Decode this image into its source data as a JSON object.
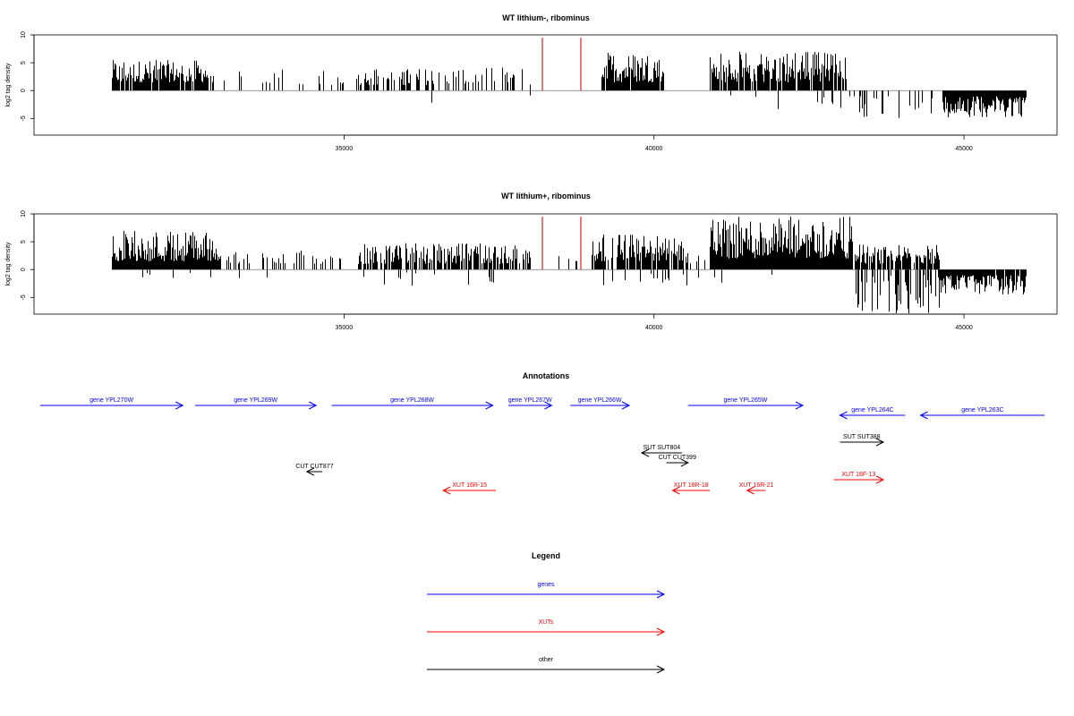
{
  "chart_data": [
    {
      "type": "bar",
      "title": "WT lithium-, ribominus",
      "ylabel": "log2 tag density",
      "xlim": [
        30000,
        46500
      ],
      "ylim": [
        -8,
        10
      ],
      "yticks": [
        -5,
        0,
        5,
        10
      ],
      "xticks": [
        35000,
        40000,
        45000
      ],
      "grid": false,
      "bar_color": "#000000",
      "marker_color": "#e41a1c",
      "markers": [
        {
          "x": 38200,
          "y": 9.5
        },
        {
          "x": 38820,
          "y": 9.5
        }
      ],
      "segments": [
        {
          "x0": 31250,
          "x1": 32900,
          "density": 0.85,
          "hmin": 1.5,
          "hmax": 5.5,
          "dir": 1,
          "neg": 0.0,
          "nmax": 0
        },
        {
          "x0": 33050,
          "x1": 35000,
          "density": 0.12,
          "hmin": 1.0,
          "hmax": 3.8,
          "dir": 1,
          "neg": 0.0,
          "nmax": 0
        },
        {
          "x0": 35200,
          "x1": 36400,
          "density": 0.45,
          "hmin": 1.0,
          "hmax": 4.0,
          "dir": 1,
          "neg": 0.0,
          "nmax": 0
        },
        {
          "x0": 36400,
          "x1": 38000,
          "density": 0.3,
          "hmin": 1.0,
          "hmax": 4.2,
          "dir": 1,
          "neg": 0.1,
          "nmax": 2.8
        },
        {
          "x0": 39150,
          "x1": 40150,
          "density": 0.9,
          "hmin": 1.5,
          "hmax": 7.0,
          "dir": 1,
          "neg": 0.0,
          "nmax": 0
        },
        {
          "x0": 40900,
          "x1": 43100,
          "density": 0.9,
          "hmin": 1.5,
          "hmax": 7.2,
          "dir": 1,
          "neg": 0.04,
          "nmax": 3.0
        },
        {
          "x0": 43150,
          "x1": 44500,
          "density": 0.15,
          "hmin": 1.0,
          "hmax": 5.0,
          "dir": -1,
          "neg": 0.0,
          "nmax": 0
        },
        {
          "x0": 44650,
          "x1": 46000,
          "density": 0.95,
          "hmin": 1.0,
          "hmax": 4.8,
          "dir": -1,
          "neg": 0.0,
          "nmax": 0
        }
      ]
    },
    {
      "type": "bar",
      "title": "WT lithium+, ribominus",
      "ylabel": "log2 tag density",
      "xlim": [
        30000,
        46500
      ],
      "ylim": [
        -8,
        10
      ],
      "yticks": [
        -5,
        0,
        5,
        10
      ],
      "xticks": [
        35000,
        40000,
        45000
      ],
      "grid": false,
      "bar_color": "#000000",
      "marker_color": "#e41a1c",
      "markers": [
        {
          "x": 38200,
          "y": 9.5
        },
        {
          "x": 38820,
          "y": 9.5
        }
      ],
      "segments": [
        {
          "x0": 31250,
          "x1": 33000,
          "density": 1.0,
          "hmin": 1.5,
          "hmax": 7.2,
          "dir": 1,
          "neg": 0.05,
          "nmax": 1.0
        },
        {
          "x0": 33000,
          "x1": 35000,
          "density": 0.25,
          "hmin": 1.0,
          "hmax": 3.5,
          "dir": 1,
          "neg": 0.05,
          "nmax": 1.5
        },
        {
          "x0": 35200,
          "x1": 38000,
          "density": 0.75,
          "hmin": 1.0,
          "hmax": 4.8,
          "dir": 1,
          "neg": 0.1,
          "nmax": 2.5
        },
        {
          "x0": 38300,
          "x1": 38800,
          "density": 0.1,
          "hmin": 1.0,
          "hmax": 2.5,
          "dir": 1,
          "neg": 0.2,
          "nmax": 2.0
        },
        {
          "x0": 39000,
          "x1": 40500,
          "density": 0.8,
          "hmin": 1.5,
          "hmax": 6.5,
          "dir": 1,
          "neg": 0.12,
          "nmax": 2.5
        },
        {
          "x0": 40500,
          "x1": 40900,
          "density": 0.2,
          "hmin": 1.0,
          "hmax": 3.0,
          "dir": 1,
          "neg": 0.4,
          "nmax": 3.5
        },
        {
          "x0": 40900,
          "x1": 43200,
          "density": 1.0,
          "hmin": 2.0,
          "hmax": 9.5,
          "dir": 1,
          "neg": 0.03,
          "nmax": 2.0
        },
        {
          "x0": 43200,
          "x1": 44600,
          "density": 0.8,
          "hmin": 1.0,
          "hmax": 4.5,
          "dir": 1,
          "neg": 0.55,
          "nmax": 7.5
        },
        {
          "x0": 44600,
          "x1": 46000,
          "density": 0.95,
          "hmin": 1.0,
          "hmax": 4.5,
          "dir": -1,
          "neg": 0.0,
          "nmax": 0
        }
      ]
    }
  ],
  "annotations": {
    "title": "Annotations",
    "features": [
      {
        "label": "gene YPL270W",
        "x0": 30080,
        "x1": 32400,
        "row": 0,
        "color": "#0000ff",
        "dir": 1
      },
      {
        "label": "gene YPL269W",
        "x0": 32600,
        "x1": 34550,
        "row": 0,
        "color": "#0000ff",
        "dir": 1
      },
      {
        "label": "gene YPL268W",
        "x0": 34800,
        "x1": 37400,
        "row": 0,
        "color": "#0000ff",
        "dir": 1
      },
      {
        "label": "gene YPL267W",
        "x0": 37650,
        "x1": 38350,
        "row": 0,
        "color": "#0000ff",
        "dir": 1
      },
      {
        "label": "gene YPL266W",
        "x0": 38650,
        "x1": 39600,
        "row": 0,
        "color": "#0000ff",
        "dir": 1
      },
      {
        "label": "gene YPL265W",
        "x0": 40550,
        "x1": 42400,
        "row": 0,
        "color": "#0000ff",
        "dir": 1
      },
      {
        "label": "gene YPL264C",
        "x0": 43000,
        "x1": 44050,
        "row": 1,
        "color": "#0000ff",
        "dir": -1
      },
      {
        "label": "gene YPL263C",
        "x0": 44300,
        "x1": 46300,
        "row": 1,
        "color": "#0000ff",
        "dir": -1
      },
      {
        "label": "SUT SUT388",
        "x0": 43000,
        "x1": 43700,
        "row": 2,
        "color": "#000000",
        "dir": 1
      },
      {
        "label": "SUT SUT804",
        "x0": 39800,
        "x1": 40450,
        "row": 3,
        "color": "#000000",
        "dir": -1
      },
      {
        "label": "CUT CUT399",
        "x0": 40200,
        "x1": 40550,
        "row": 4,
        "color": "#000000",
        "dir": 1
      },
      {
        "label": "CUT CUT877",
        "x0": 34400,
        "x1": 34650,
        "row": 5,
        "color": "#000000",
        "dir": -1
      },
      {
        "label": "XUT 16F-13",
        "x0": 42900,
        "x1": 43700,
        "row": 6,
        "color": "#ff0000",
        "dir": 1
      },
      {
        "label": "XUT 16R-15",
        "x0": 36600,
        "x1": 37450,
        "row": 7,
        "color": "#ff0000",
        "dir": -1
      },
      {
        "label": "XUT 16R-18",
        "x0": 40300,
        "x1": 40900,
        "row": 7,
        "color": "#ff0000",
        "dir": -1
      },
      {
        "label": "XUT 16R-21",
        "x0": 41500,
        "x1": 41800,
        "row": 7,
        "color": "#ff0000",
        "dir": -1
      }
    ]
  },
  "legend": {
    "title": "Legend",
    "items": [
      {
        "label": "genes",
        "color": "#0000ff"
      },
      {
        "label": "XUTs",
        "color": "#ff0000"
      },
      {
        "label": "other",
        "color": "#000000"
      }
    ]
  }
}
